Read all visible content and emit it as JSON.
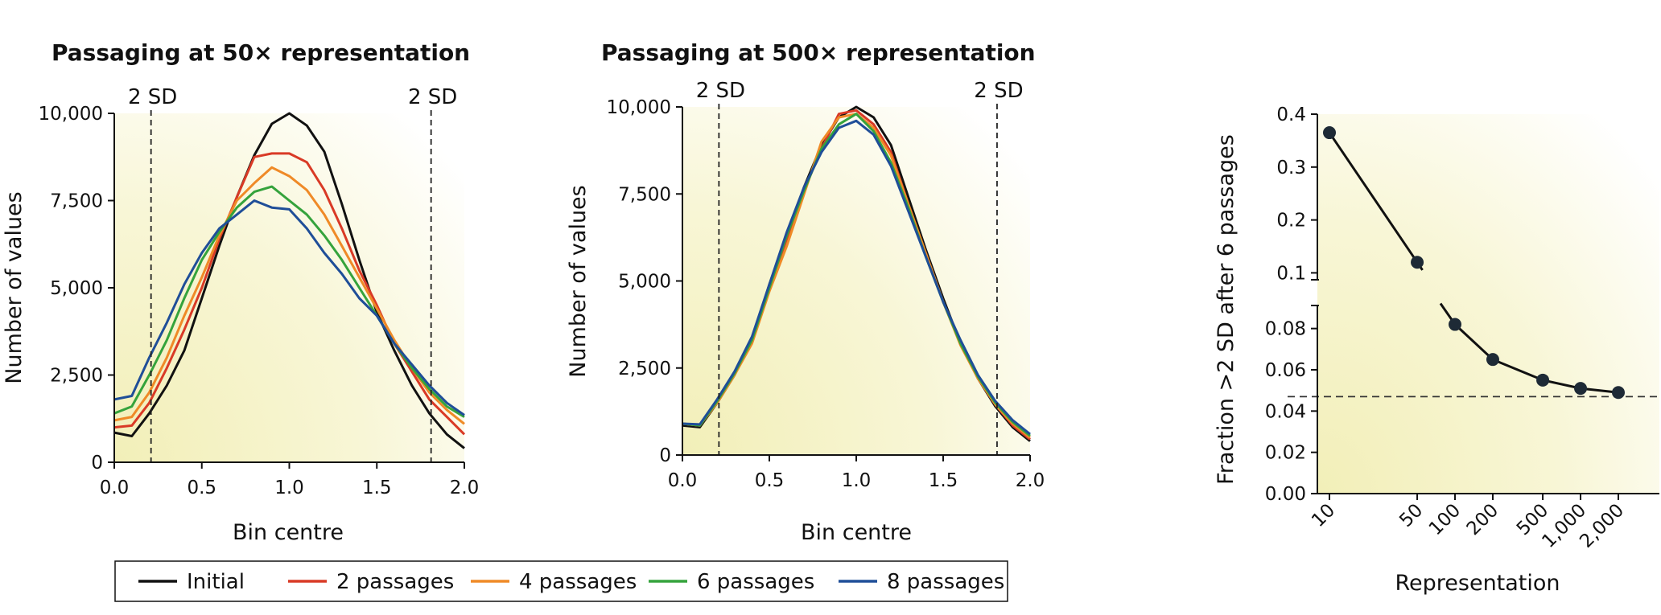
{
  "chart_data": [
    {
      "type": "line",
      "title": "Passaging at 50× representation",
      "xlabel": "Bin centre",
      "ylabel": "Number of values",
      "xlim": [
        0,
        2
      ],
      "ylim": [
        0,
        10000
      ],
      "x_ticks": [
        "0.0",
        "0.5",
        "1.0",
        "1.5",
        "2.0"
      ],
      "y_ticks": [
        "0",
        "2,500",
        "5,000",
        "7,500",
        "10,000"
      ],
      "vlines": [
        {
          "x": 0.21,
          "label": "2 SD"
        },
        {
          "x": 1.81,
          "label": "2 SD"
        }
      ],
      "x": [
        0,
        0.1,
        0.2,
        0.3,
        0.4,
        0.5,
        0.6,
        0.7,
        0.8,
        0.9,
        1.0,
        1.1,
        1.2,
        1.3,
        1.4,
        1.5,
        1.6,
        1.7,
        1.8,
        1.9,
        2.0
      ],
      "series": [
        {
          "name": "Initial",
          "color": "#111111",
          "values": [
            850,
            750,
            1400,
            2200,
            3200,
            4700,
            6200,
            7600,
            8800,
            9700,
            10000,
            9650,
            8900,
            7400,
            5800,
            4300,
            3200,
            2200,
            1400,
            800,
            400
          ]
        },
        {
          "name": "2 passages",
          "color": "#d93a26",
          "values": [
            1000,
            1050,
            1700,
            2700,
            3800,
            5000,
            6400,
            7600,
            8750,
            8850,
            8850,
            8600,
            7800,
            6700,
            5500,
            4500,
            3400,
            2600,
            1800,
            1300,
            800
          ]
        },
        {
          "name": "4 passages",
          "color": "#ef8a27",
          "values": [
            1200,
            1300,
            2000,
            3000,
            4200,
            5300,
            6500,
            7500,
            8000,
            8450,
            8200,
            7800,
            7100,
            6200,
            5300,
            4400,
            3500,
            2700,
            2000,
            1500,
            1100
          ]
        },
        {
          "name": "6 passages",
          "color": "#35a33c",
          "values": [
            1400,
            1600,
            2500,
            3500,
            4700,
            5800,
            6600,
            7300,
            7750,
            7900,
            7500,
            7100,
            6500,
            5800,
            5000,
            4200,
            3400,
            2700,
            2100,
            1600,
            1300
          ]
        },
        {
          "name": "8 passages",
          "color": "#1f4e98",
          "values": [
            1800,
            1900,
            3000,
            4000,
            5100,
            6000,
            6700,
            7100,
            7500,
            7300,
            7250,
            6700,
            6000,
            5400,
            4700,
            4200,
            3400,
            2800,
            2200,
            1700,
            1350
          ]
        }
      ]
    },
    {
      "type": "line",
      "title": "Passaging at 500× representation",
      "xlabel": "Bin centre",
      "ylabel": "Number of values",
      "xlim": [
        0,
        2
      ],
      "ylim": [
        0,
        10000
      ],
      "x_ticks": [
        "0.0",
        "0.5",
        "1.0",
        "1.5",
        "2.0"
      ],
      "y_ticks": [
        "0",
        "2,500",
        "5,000",
        "7,500",
        "10,000"
      ],
      "vlines": [
        {
          "x": 0.21,
          "label": "2 SD"
        },
        {
          "x": 1.81,
          "label": "2 SD"
        }
      ],
      "x": [
        0,
        0.1,
        0.2,
        0.3,
        0.4,
        0.5,
        0.6,
        0.7,
        0.8,
        0.9,
        1.0,
        1.1,
        1.2,
        1.3,
        1.4,
        1.5,
        1.6,
        1.7,
        1.8,
        1.9,
        2.0
      ],
      "series": [
        {
          "name": "Initial",
          "color": "#111111",
          "values": [
            850,
            800,
            1500,
            2300,
            3300,
            4900,
            6300,
            7700,
            8900,
            9700,
            10000,
            9700,
            8900,
            7400,
            5900,
            4500,
            3200,
            2200,
            1400,
            800,
            400
          ]
        },
        {
          "name": "2 passages",
          "color": "#d93a26",
          "values": [
            900,
            850,
            1550,
            2350,
            3300,
            4800,
            6200,
            7600,
            8800,
            9800,
            9900,
            9500,
            8700,
            7200,
            5800,
            4400,
            3200,
            2200,
            1450,
            850,
            450
          ]
        },
        {
          "name": "4 passages",
          "color": "#ef8a27",
          "values": [
            900,
            850,
            1500,
            2300,
            3200,
            4700,
            6000,
            7500,
            9000,
            9700,
            9800,
            9400,
            8600,
            7200,
            5800,
            4400,
            3150,
            2200,
            1450,
            900,
            500
          ]
        },
        {
          "name": "6 passages",
          "color": "#35a33c",
          "values": [
            900,
            850,
            1550,
            2350,
            3300,
            4800,
            6300,
            7600,
            8800,
            9500,
            9800,
            9300,
            8400,
            7100,
            5700,
            4400,
            3200,
            2250,
            1500,
            950,
            550
          ]
        },
        {
          "name": "8 passages",
          "color": "#1f4e98",
          "values": [
            900,
            880,
            1600,
            2400,
            3400,
            4900,
            6400,
            7700,
            8700,
            9400,
            9600,
            9200,
            8300,
            7000,
            5700,
            4400,
            3300,
            2300,
            1550,
            1000,
            600
          ]
        }
      ]
    },
    {
      "type": "scatter",
      "xlabel": "Representation",
      "ylabel": "Fraction >2 SD after 6 passages",
      "x_ticks": [
        "10",
        "50",
        "100",
        "200",
        "500",
        "1,000",
        "2,000"
      ],
      "y_ticks_lower": [
        "0.00",
        "0.02",
        "0.04",
        "0.06",
        "0.08"
      ],
      "y_ticks_upper": [
        "0.1",
        "0.2",
        "0.3",
        "0.4"
      ],
      "ylim_lower": [
        0,
        0.09
      ],
      "ylim_upper": [
        0.09,
        0.4
      ],
      "axis_break": true,
      "reference_line": 0.047,
      "series": [
        {
          "x": [
            "10",
            "50",
            "100",
            "200",
            "500",
            "1,000",
            "2,000"
          ],
          "values": [
            0.365,
            0.12,
            0.082,
            0.065,
            0.055,
            0.051,
            0.049
          ]
        }
      ]
    }
  ],
  "legend": {
    "items": [
      {
        "label": "Initial",
        "color": "#111111"
      },
      {
        "label": "2 passages",
        "color": "#d93a26"
      },
      {
        "label": "4 passages",
        "color": "#ef8a27"
      },
      {
        "label": "6 passages",
        "color": "#35a33c"
      },
      {
        "label": "8 passages",
        "color": "#1f4e98"
      }
    ]
  },
  "colors": {
    "background_glow": "#f3f1c0",
    "axis": "#111111"
  }
}
